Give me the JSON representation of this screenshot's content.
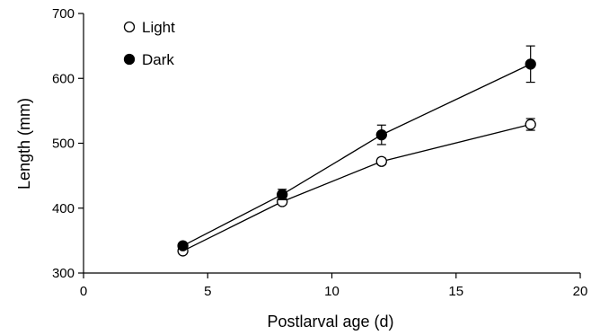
{
  "chart_data": {
    "type": "line",
    "title": "",
    "xlabel": "Postlarval age (d)",
    "ylabel": "Length (mm)",
    "xlim": [
      0,
      20
    ],
    "ylim": [
      300,
      700
    ],
    "xticks": [
      0,
      5,
      10,
      15,
      20
    ],
    "yticks": [
      300,
      400,
      500,
      600,
      700
    ],
    "grid": false,
    "legend_position": "top-left",
    "series": [
      {
        "name": "Light",
        "marker": "open-circle",
        "color": "#000000",
        "points": [
          {
            "x": 4,
            "y": 334,
            "err": 3
          },
          {
            "x": 8,
            "y": 410,
            "err": 4
          },
          {
            "x": 12,
            "y": 472,
            "err": 5
          },
          {
            "x": 18,
            "y": 529,
            "err": 9
          }
        ]
      },
      {
        "name": "Dark",
        "marker": "filled-circle",
        "color": "#000000",
        "points": [
          {
            "x": 4,
            "y": 342,
            "err": 4
          },
          {
            "x": 8,
            "y": 421,
            "err": 8
          },
          {
            "x": 12,
            "y": 513,
            "err": 15
          },
          {
            "x": 18,
            "y": 622,
            "err": 28
          }
        ]
      }
    ]
  }
}
